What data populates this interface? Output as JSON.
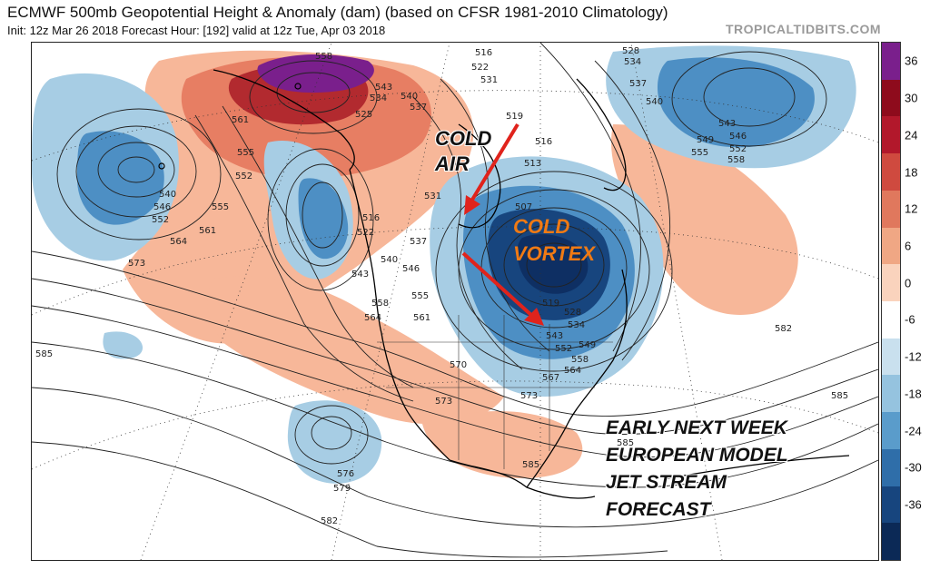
{
  "header": {
    "title": "ECMWF 500mb Geopotential Height & Anomaly (dam) (based on CFSR 1981-2010 Climatology)",
    "subtitle": "Init: 12z Mar 26 2018   Forecast Hour: [192]   valid at 12z Tue, Apr 03 2018",
    "site": "TROPICALTIDBITS.COM"
  },
  "colorbar": {
    "ticks": [
      "36",
      "30",
      "24",
      "18",
      "12",
      "6",
      "0",
      "-6",
      "-12",
      "-18",
      "-24",
      "-30",
      "-36"
    ],
    "colors": [
      "#7a1f8c",
      "#8e0b1c",
      "#b2182b",
      "#cf4a3f",
      "#e0785d",
      "#f0a784",
      "#fad3bd",
      "#ffffff",
      "#c9e0ee",
      "#95c3df",
      "#5a9ccb",
      "#2f6ea9",
      "#17457e",
      "#0b2956"
    ]
  },
  "annotations": {
    "cold_air_line1": "COLD",
    "cold_air_line2": "AIR",
    "vortex_line1": "COLD",
    "vortex_line2": "VORTEX",
    "caption_line1": "EARLY NEXT WEEK",
    "caption_line2": "EUROPEAN MODEL",
    "caption_line3": "JET STREAM",
    "caption_line4": "FORECAST"
  },
  "contour_labels": [
    "558",
    "561",
    "543",
    "534",
    "540",
    "537",
    "525",
    "516",
    "522",
    "531",
    "528",
    "534",
    "537",
    "540",
    "543",
    "546",
    "549",
    "552",
    "555",
    "558",
    "519",
    "516",
    "513",
    "507",
    "555",
    "552",
    "555",
    "561",
    "564",
    "573",
    "540",
    "546",
    "552",
    "516",
    "522",
    "531",
    "537",
    "540",
    "546",
    "543",
    "558",
    "555",
    "564",
    "561",
    "519",
    "528",
    "534",
    "543",
    "549",
    "552",
    "558",
    "564",
    "567",
    "570",
    "573",
    "573",
    "576",
    "579",
    "582",
    "585",
    "585",
    "582",
    "585",
    "585"
  ],
  "map": {
    "colors": {
      "warm_light": "#f7b799",
      "warm_mid": "#e77e63",
      "warm_dark": "#b22a2f",
      "purple": "#7a1f8c",
      "cold_light": "#a7cde4",
      "cold_mid": "#4d8fc4",
      "cold_dark": "#0e2f63",
      "arrow": "#e0231c"
    }
  }
}
